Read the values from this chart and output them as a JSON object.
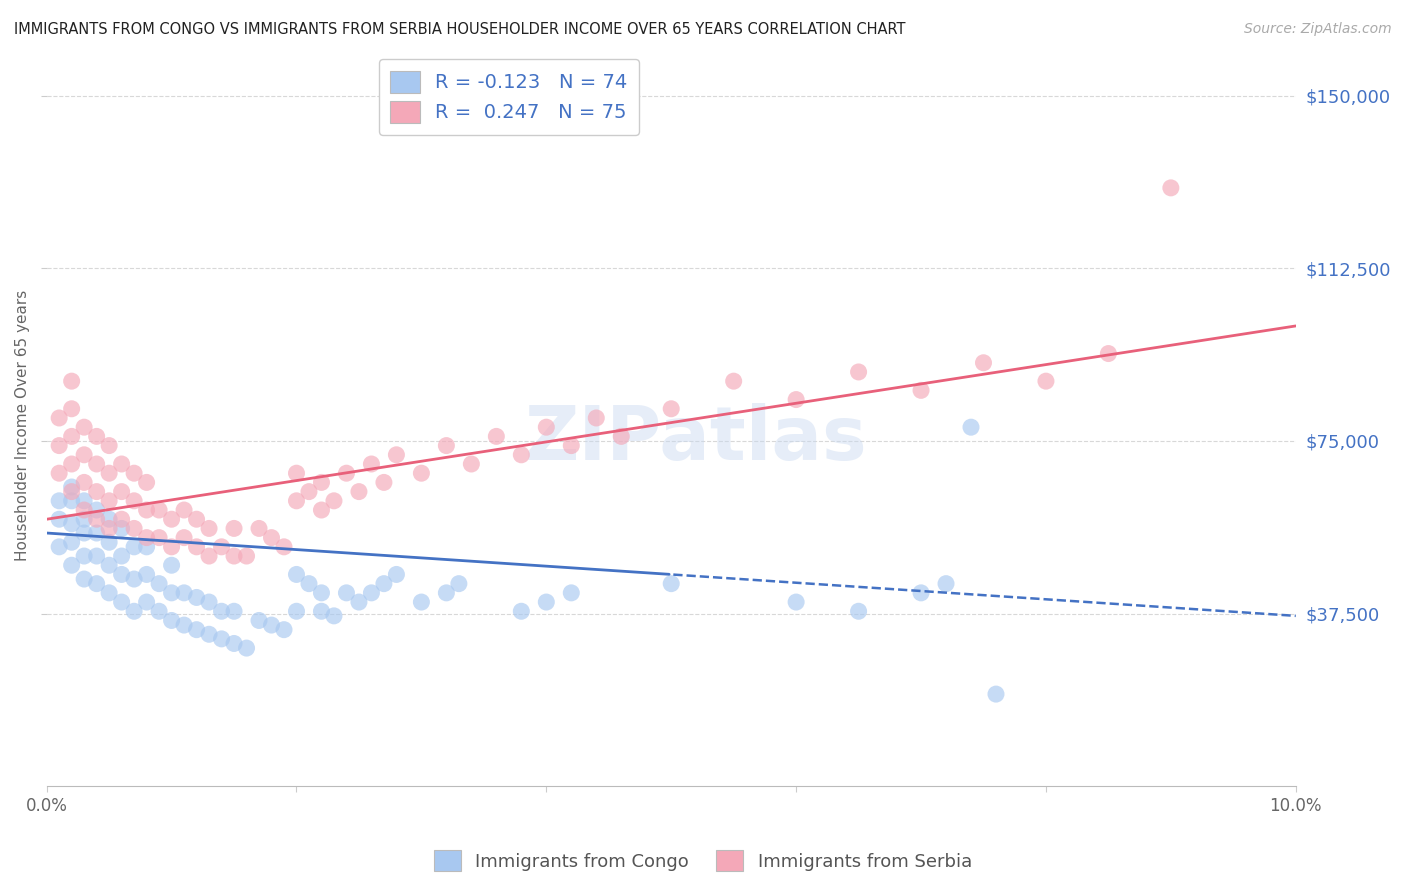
{
  "title": "IMMIGRANTS FROM CONGO VS IMMIGRANTS FROM SERBIA HOUSEHOLDER INCOME OVER 65 YEARS CORRELATION CHART",
  "source": "Source: ZipAtlas.com",
  "ylabel": "Householder Income Over 65 years",
  "ytick_labels": [
    "$37,500",
    "$75,000",
    "$112,500",
    "$150,000"
  ],
  "ytick_values": [
    37500,
    75000,
    112500,
    150000
  ],
  "xlim": [
    0.0,
    0.1
  ],
  "ylim": [
    0,
    157000
  ],
  "congo_R": -0.123,
  "congo_N": 74,
  "serbia_R": 0.247,
  "serbia_N": 75,
  "congo_color": "#a8c8f0",
  "serbia_color": "#f4a8b8",
  "congo_line_color": "#4472c4",
  "serbia_line_color": "#e8607a",
  "legend_label_congo": "Immigrants from Congo",
  "legend_label_serbia": "Immigrants from Serbia",
  "watermark": "ZIPatlas",
  "background_color": "#ffffff",
  "grid_color": "#d8d8d8",
  "title_color": "#222222",
  "axis_label_color": "#666666",
  "congo_scatter_x": [
    0.001,
    0.001,
    0.001,
    0.002,
    0.002,
    0.002,
    0.002,
    0.002,
    0.003,
    0.003,
    0.003,
    0.003,
    0.003,
    0.004,
    0.004,
    0.004,
    0.004,
    0.005,
    0.005,
    0.005,
    0.005,
    0.006,
    0.006,
    0.006,
    0.006,
    0.007,
    0.007,
    0.007,
    0.008,
    0.008,
    0.008,
    0.009,
    0.009,
    0.01,
    0.01,
    0.01,
    0.011,
    0.011,
    0.012,
    0.012,
    0.013,
    0.013,
    0.014,
    0.014,
    0.015,
    0.015,
    0.016,
    0.017,
    0.018,
    0.019,
    0.02,
    0.02,
    0.021,
    0.022,
    0.022,
    0.023,
    0.024,
    0.025,
    0.026,
    0.027,
    0.028,
    0.03,
    0.032,
    0.033,
    0.038,
    0.04,
    0.042,
    0.05,
    0.06,
    0.065,
    0.07,
    0.072,
    0.074,
    0.076
  ],
  "congo_scatter_y": [
    52000,
    58000,
    62000,
    48000,
    53000,
    57000,
    62000,
    65000,
    45000,
    50000,
    55000,
    58000,
    62000,
    44000,
    50000,
    55000,
    60000,
    42000,
    48000,
    53000,
    58000,
    40000,
    46000,
    50000,
    56000,
    38000,
    45000,
    52000,
    40000,
    46000,
    52000,
    38000,
    44000,
    36000,
    42000,
    48000,
    35000,
    42000,
    34000,
    41000,
    33000,
    40000,
    32000,
    38000,
    31000,
    38000,
    30000,
    36000,
    35000,
    34000,
    46000,
    38000,
    44000,
    38000,
    42000,
    37000,
    42000,
    40000,
    42000,
    44000,
    46000,
    40000,
    42000,
    44000,
    38000,
    40000,
    42000,
    44000,
    40000,
    38000,
    42000,
    44000,
    78000,
    20000
  ],
  "serbia_scatter_x": [
    0.001,
    0.001,
    0.001,
    0.002,
    0.002,
    0.002,
    0.002,
    0.002,
    0.003,
    0.003,
    0.003,
    0.003,
    0.004,
    0.004,
    0.004,
    0.004,
    0.005,
    0.005,
    0.005,
    0.005,
    0.006,
    0.006,
    0.006,
    0.007,
    0.007,
    0.007,
    0.008,
    0.008,
    0.008,
    0.009,
    0.009,
    0.01,
    0.01,
    0.011,
    0.011,
    0.012,
    0.012,
    0.013,
    0.013,
    0.014,
    0.015,
    0.015,
    0.016,
    0.017,
    0.018,
    0.019,
    0.02,
    0.02,
    0.021,
    0.022,
    0.022,
    0.023,
    0.024,
    0.025,
    0.026,
    0.027,
    0.028,
    0.03,
    0.032,
    0.034,
    0.036,
    0.038,
    0.04,
    0.042,
    0.044,
    0.046,
    0.05,
    0.055,
    0.06,
    0.065,
    0.07,
    0.075,
    0.08,
    0.085,
    0.09
  ],
  "serbia_scatter_y": [
    68000,
    74000,
    80000,
    64000,
    70000,
    76000,
    82000,
    88000,
    60000,
    66000,
    72000,
    78000,
    58000,
    64000,
    70000,
    76000,
    56000,
    62000,
    68000,
    74000,
    58000,
    64000,
    70000,
    56000,
    62000,
    68000,
    54000,
    60000,
    66000,
    54000,
    60000,
    52000,
    58000,
    54000,
    60000,
    52000,
    58000,
    50000,
    56000,
    52000,
    50000,
    56000,
    50000,
    56000,
    54000,
    52000,
    62000,
    68000,
    64000,
    60000,
    66000,
    62000,
    68000,
    64000,
    70000,
    66000,
    72000,
    68000,
    74000,
    70000,
    76000,
    72000,
    78000,
    74000,
    80000,
    76000,
    82000,
    88000,
    84000,
    90000,
    86000,
    92000,
    88000,
    94000,
    130000
  ]
}
